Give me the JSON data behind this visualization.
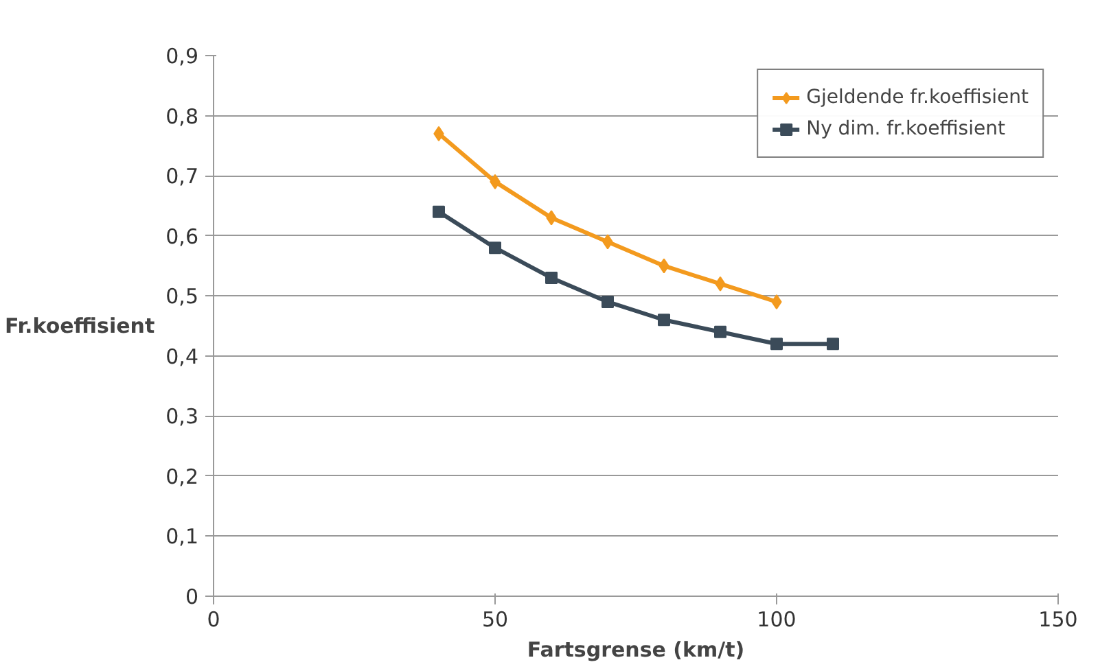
{
  "chart_data": {
    "type": "line",
    "xlabel": "Fartsgrense (km/t)",
    "ylabel": "Fr.koeffisient",
    "x": [
      40,
      50,
      60,
      70,
      80,
      90,
      100,
      110
    ],
    "series": [
      {
        "name": "Gjeldende fr.koeffisient",
        "color": "#f39a1e",
        "marker": "diamond",
        "values": [
          0.77,
          0.69,
          0.63,
          0.59,
          0.55,
          0.52,
          0.49,
          null
        ]
      },
      {
        "name": "Ny dim. fr.koeffisient",
        "color": "#3b4b59",
        "marker": "square",
        "values": [
          0.64,
          0.58,
          0.53,
          0.49,
          0.46,
          0.44,
          0.42,
          0.42
        ]
      }
    ],
    "xlim": [
      0,
      150
    ],
    "xticks": [
      {
        "value": 0,
        "label": "0"
      },
      {
        "value": 50,
        "label": "50"
      },
      {
        "value": 100,
        "label": "100"
      },
      {
        "value": 150,
        "label": "150"
      }
    ],
    "ylim": [
      0,
      0.9
    ],
    "yticks": [
      {
        "value": 0,
        "label": "0"
      },
      {
        "value": 0.1,
        "label": "0,1"
      },
      {
        "value": 0.2,
        "label": "0,2"
      },
      {
        "value": 0.3,
        "label": "0,3"
      },
      {
        "value": 0.4,
        "label": "0,4"
      },
      {
        "value": 0.5,
        "label": "0,5"
      },
      {
        "value": 0.6,
        "label": "0,6"
      },
      {
        "value": 0.7,
        "label": "0,7"
      },
      {
        "value": 0.8,
        "label": "0,8"
      },
      {
        "value": 0.9,
        "label": "0,9"
      }
    ],
    "grid": "y",
    "legend": "top right",
    "line_style": "solid"
  }
}
